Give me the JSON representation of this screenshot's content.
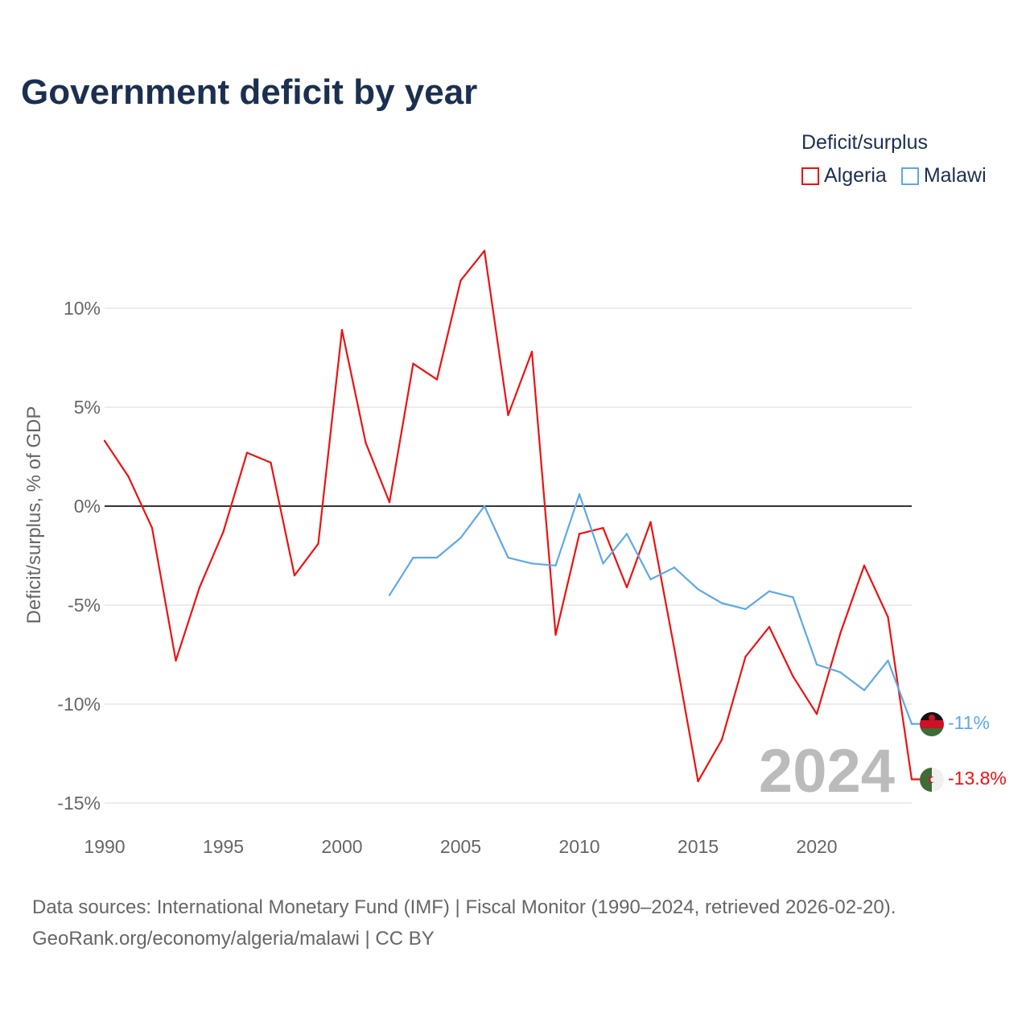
{
  "title": "Government deficit by year",
  "legend": {
    "title": "Deficit/surplus",
    "items": [
      {
        "label": "Algeria",
        "color": "#ee1111"
      },
      {
        "label": "Malawi",
        "color": "#5ea8e8"
      }
    ]
  },
  "current_year": "2024",
  "end_labels": {
    "algeria": "-13.8%",
    "malawi": "-11%"
  },
  "source_line1": "Data sources: International Monetary Fund (IMF) | Fiscal Monitor (1990–2024, retrieved 2026-02-20).",
  "source_line2": "GeoRank.org/economy/algeria/malawi | CC BY",
  "chart_data": {
    "type": "line",
    "title": "Government deficit by year",
    "xlabel": "",
    "ylabel": "Deficit/surplus, % of GDP",
    "xlim": [
      1990,
      2024
    ],
    "ylim": [
      -15,
      10
    ],
    "x_ticks": [
      1990,
      1995,
      2000,
      2005,
      2010,
      2015,
      2020
    ],
    "y_ticks": [
      10,
      5,
      0,
      -5,
      -10,
      -15
    ],
    "y_tick_labels": [
      "10%",
      "5%",
      "0%",
      "-5%",
      "-10%",
      "-15%"
    ],
    "grid": true,
    "legend_position": "top-right",
    "series": [
      {
        "name": "Algeria",
        "color": "#ee1111",
        "start_year": 1990,
        "values": [
          3.3,
          1.5,
          -1.1,
          -7.8,
          -4.1,
          -1.3,
          2.7,
          2.2,
          -3.5,
          -1.9,
          8.9,
          3.2,
          0.2,
          7.2,
          6.4,
          11.4,
          12.9,
          4.6,
          7.8,
          -6.5,
          -1.4,
          -1.1,
          -4.1,
          -0.8,
          -7.2,
          -13.9,
          -11.8,
          -7.6,
          -6.1,
          -8.6,
          -10.5,
          -6.4,
          -3.0,
          -5.6,
          -13.8
        ]
      },
      {
        "name": "Malawi",
        "color": "#5ea8e8",
        "start_year": 2002,
        "values": [
          -4.5,
          -2.6,
          -2.6,
          -1.6,
          0.0,
          -2.6,
          -2.9,
          -3.0,
          0.6,
          -2.9,
          -1.4,
          -3.7,
          -3.1,
          -4.2,
          -4.9,
          -5.2,
          -4.3,
          -4.6,
          -8.0,
          -8.4,
          -9.3,
          -7.8,
          -11.0
        ]
      }
    ]
  }
}
